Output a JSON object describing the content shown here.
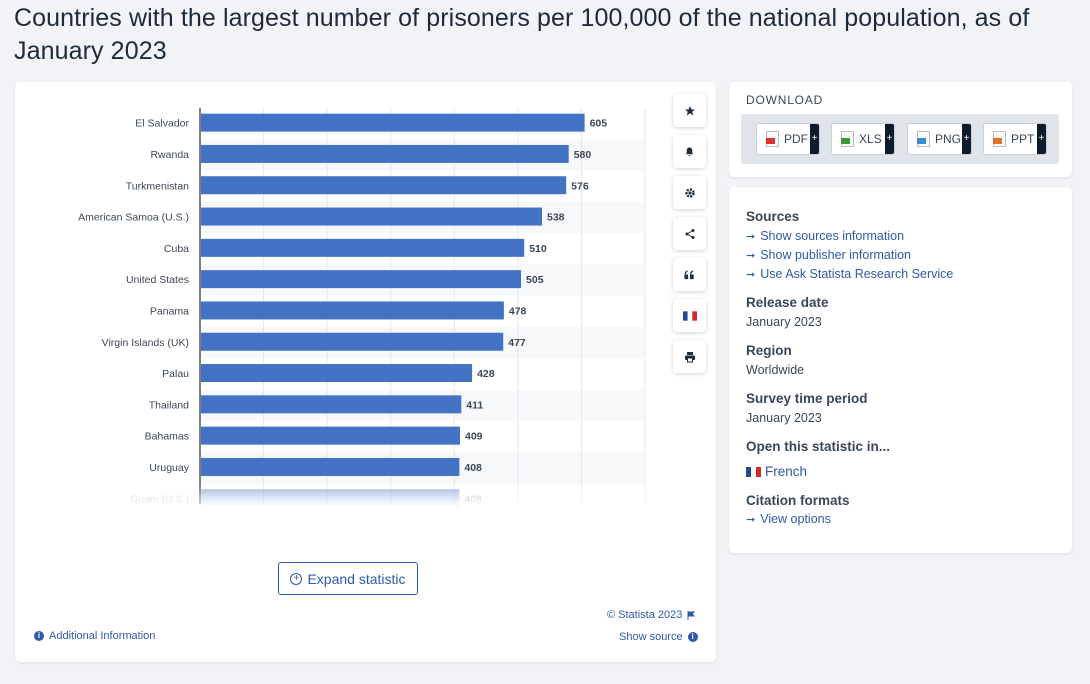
{
  "page": {
    "title": "Countries with the largest number of prisoners per 100,000 of the national population, as of January 2023"
  },
  "chart_data": {
    "type": "bar",
    "orientation": "horizontal",
    "categories": [
      "El Salvador",
      "Rwanda",
      "Turkmenistan",
      "American Samoa (U.S.)",
      "Cuba",
      "United States",
      "Panama",
      "Virgin Islands (UK)",
      "Palau",
      "Thailand",
      "Bahamas",
      "Uruguay",
      "Guam (U.S.)"
    ],
    "values": [
      605,
      580,
      576,
      538,
      510,
      505,
      478,
      477,
      428,
      411,
      409,
      408,
      408
    ],
    "value_labels": [
      "605",
      "580",
      "576",
      "538",
      "510",
      "505",
      "478",
      "477",
      "428",
      "411",
      "409",
      "408",
      "408"
    ],
    "xlim": [
      0,
      700
    ],
    "grid": true,
    "bar_color": "#4472c4",
    "faded_last_row": true
  },
  "chart": {
    "expand_label": "Expand statistic",
    "additional_info": "Additional Information",
    "copyright": "© Statista 2023",
    "show_source": "Show source",
    "tools": [
      "star-icon",
      "bell-icon",
      "gear-icon",
      "share-icon",
      "quote-icon",
      "french-flag-icon",
      "print-icon"
    ]
  },
  "download": {
    "title": "DOWNLOAD",
    "buttons": [
      {
        "label": "PDF",
        "color": "#d9322e"
      },
      {
        "label": "XLS",
        "color": "#3a9a3a"
      },
      {
        "label": "PNG",
        "color": "#3b8bd0"
      },
      {
        "label": "PPT",
        "color": "#e0752a"
      }
    ]
  },
  "meta": {
    "sources_h": "Sources",
    "sources_links": [
      "Show sources information",
      "Show publisher information",
      "Use Ask Statista Research Service"
    ],
    "release_h": "Release date",
    "release_v": "January 2023",
    "region_h": "Region",
    "region_v": "Worldwide",
    "period_h": "Survey time period",
    "period_v": "January 2023",
    "open_h": "Open this statistic in...",
    "open_v": "French",
    "citation_h": "Citation formats",
    "citation_link": "View options"
  },
  "colors": {
    "accent": "#2f5aa8",
    "bar": "#4472c4"
  }
}
